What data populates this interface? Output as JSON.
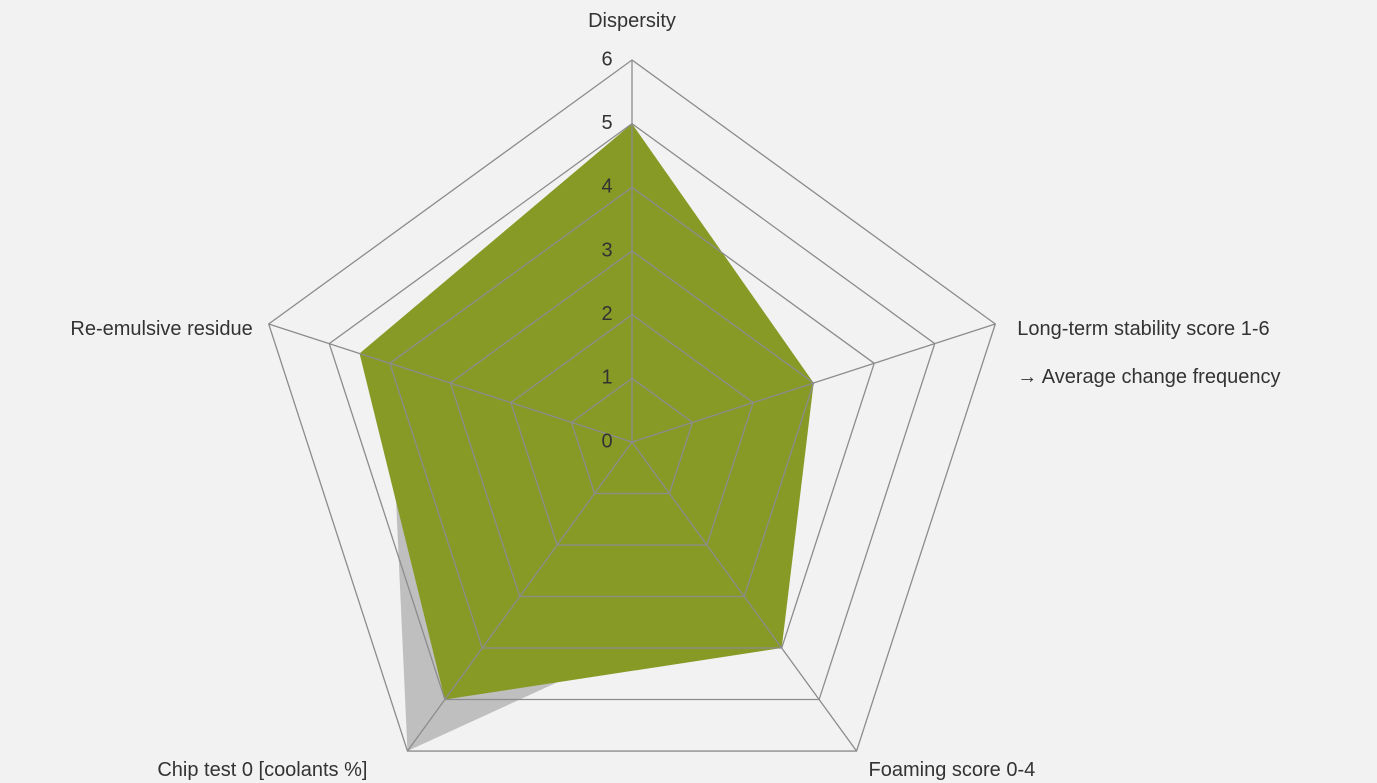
{
  "chart_data": {
    "type": "radar",
    "categories": [
      "Dispersity",
      "Long-term stability score 1-6\n→ Average change frequency",
      "Foaming score 0-4",
      "Chip test 0 [coolants %]",
      "Re-emulsive residue"
    ],
    "series": [
      {
        "color": "#bfbfbf",
        "values": [
          4,
          2,
          3,
          6,
          4
        ]
      },
      {
        "color": "#879a26",
        "values": [
          5,
          3,
          4,
          5,
          4.5
        ]
      }
    ],
    "ylim": [
      0,
      6
    ],
    "yticks": [
      0,
      1,
      2,
      3,
      4,
      5,
      6
    ],
    "grid": true
  }
}
